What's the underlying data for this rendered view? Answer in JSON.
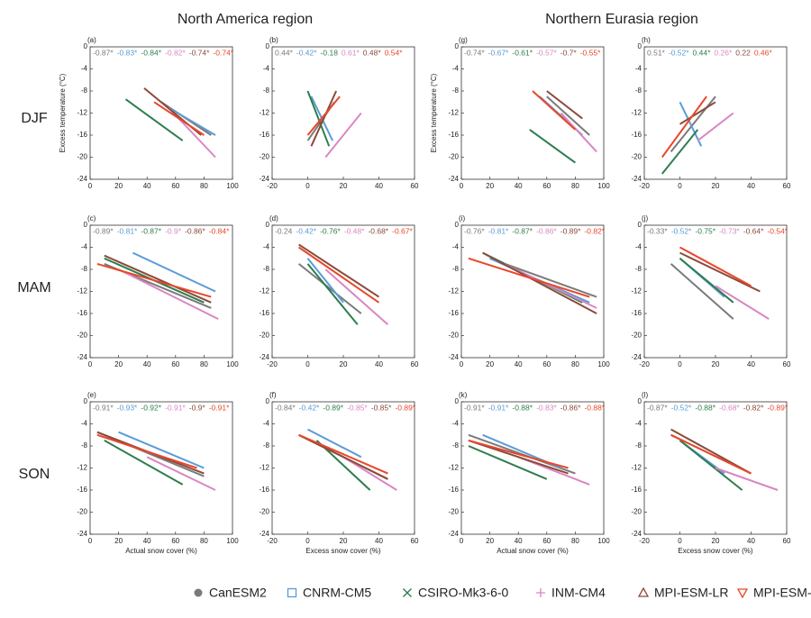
{
  "column_titles": [
    "North America region",
    "Northern Eurasia region"
  ],
  "row_labels": [
    "DJF",
    "MAM",
    "SON"
  ],
  "legend": [
    {
      "name": "CanESM2",
      "color": "#7a7a7a",
      "marker": "circle"
    },
    {
      "name": "CNRM-CM5",
      "color": "#5b9bd5",
      "marker": "square"
    },
    {
      "name": "CSIRO-Mk3-6-0",
      "color": "#2e7d4f",
      "marker": "cross"
    },
    {
      "name": "INM-CM4",
      "color": "#d987c2",
      "marker": "plus"
    },
    {
      "name": "MPI-ESM-LR",
      "color": "#8b4a3a",
      "marker": "triangle-up"
    },
    {
      "name": "MPI-ESM-MR",
      "color": "#e8472b",
      "marker": "triangle-down"
    }
  ],
  "chart_data": [
    {
      "type": "line",
      "panel": "(a)",
      "ylabel": "Excess temperature (°C)",
      "xlim": [
        0,
        100
      ],
      "xticks": [
        0,
        20,
        40,
        60,
        80,
        100
      ],
      "ylim": [
        -24,
        0
      ],
      "yticks": [
        0,
        -4,
        -8,
        -12,
        -16,
        -20,
        -24
      ],
      "series": [
        {
          "label": "-0.87*",
          "x": [
            50,
            85
          ],
          "values": [
            -10,
            -16
          ]
        },
        {
          "label": "-0.83*",
          "x": [
            55,
            88
          ],
          "values": [
            -11,
            -16
          ]
        },
        {
          "label": "-0.84*",
          "x": [
            25,
            65
          ],
          "values": [
            -9.5,
            -17
          ]
        },
        {
          "label": "-0.82*",
          "x": [
            55,
            88
          ],
          "values": [
            -11,
            -20
          ]
        },
        {
          "label": "-0.74*",
          "x": [
            38,
            78
          ],
          "values": [
            -7.5,
            -16
          ]
        },
        {
          "label": "-0.74*",
          "x": [
            45,
            80
          ],
          "values": [
            -10,
            -16
          ]
        }
      ]
    },
    {
      "type": "line",
      "panel": "(b)",
      "xlim": [
        -20,
        60
      ],
      "xticks": [
        -20,
        0,
        20,
        40,
        60
      ],
      "ylim": [
        -24,
        0
      ],
      "yticks": [
        0,
        -4,
        -8,
        -12,
        -16,
        -20,
        -24
      ],
      "series": [
        {
          "label": "0.44*",
          "x": [
            0,
            15
          ],
          "values": [
            -17,
            -10
          ]
        },
        {
          "label": "-0.42*",
          "x": [
            2,
            14
          ],
          "values": [
            -9,
            -17
          ]
        },
        {
          "label": "-0.18",
          "x": [
            0,
            12
          ],
          "values": [
            -8,
            -18
          ]
        },
        {
          "label": "0.61*",
          "x": [
            10,
            30
          ],
          "values": [
            -20,
            -12
          ]
        },
        {
          "label": "0.48*",
          "x": [
            2,
            16
          ],
          "values": [
            -18,
            -8
          ]
        },
        {
          "label": "0.54*",
          "x": [
            0,
            18
          ],
          "values": [
            -16,
            -9
          ]
        }
      ]
    },
    {
      "type": "line",
      "panel": "(g)",
      "ylabel": "Excess temperature (°C)",
      "xlim": [
        0,
        100
      ],
      "xticks": [
        0,
        20,
        40,
        60,
        80,
        100
      ],
      "ylim": [
        -24,
        0
      ],
      "yticks": [
        0,
        -4,
        -8,
        -12,
        -16,
        -20,
        -24
      ],
      "series": [
        {
          "label": "-0.74*",
          "x": [
            60,
            90
          ],
          "values": [
            -9,
            -16
          ]
        },
        {
          "label": "-0.67*",
          "x": [
            55,
            85
          ],
          "values": [
            -9,
            -16
          ]
        },
        {
          "label": "-0.61*",
          "x": [
            48,
            80
          ],
          "values": [
            -15,
            -21
          ]
        },
        {
          "label": "-0.57*",
          "x": [
            70,
            95
          ],
          "values": [
            -12,
            -19
          ]
        },
        {
          "label": "-0.7*",
          "x": [
            60,
            85
          ],
          "values": [
            -8,
            -13
          ]
        },
        {
          "label": "-0.55*",
          "x": [
            50,
            80
          ],
          "values": [
            -8,
            -15
          ]
        }
      ]
    },
    {
      "type": "line",
      "panel": "(h)",
      "xlim": [
        -20,
        60
      ],
      "xticks": [
        -20,
        0,
        20,
        40,
        60
      ],
      "ylim": [
        -24,
        0
      ],
      "yticks": [
        0,
        -4,
        -8,
        -12,
        -16,
        -20,
        -24
      ],
      "series": [
        {
          "label": "0.51*",
          "x": [
            -5,
            20
          ],
          "values": [
            -19,
            -9
          ]
        },
        {
          "label": "-0.52*",
          "x": [
            0,
            12
          ],
          "values": [
            -10,
            -18
          ]
        },
        {
          "label": "0.44*",
          "x": [
            -10,
            10
          ],
          "values": [
            -23,
            -15
          ]
        },
        {
          "label": "0.26*",
          "x": [
            10,
            30
          ],
          "values": [
            -17,
            -12
          ]
        },
        {
          "label": "0.22",
          "x": [
            0,
            20
          ],
          "values": [
            -14,
            -10
          ]
        },
        {
          "label": "0.46*",
          "x": [
            -10,
            15
          ],
          "values": [
            -20,
            -9
          ]
        }
      ]
    },
    {
      "type": "line",
      "panel": "(c)",
      "xlim": [
        0,
        100
      ],
      "xticks": [
        0,
        20,
        40,
        60,
        80,
        100
      ],
      "ylim": [
        -24,
        0
      ],
      "yticks": [
        0,
        -4,
        -8,
        -12,
        -16,
        -20,
        -24
      ],
      "series": [
        {
          "label": "-0.89*",
          "x": [
            10,
            85
          ],
          "values": [
            -7,
            -15
          ]
        },
        {
          "label": "-0.81*",
          "x": [
            30,
            88
          ],
          "values": [
            -5,
            -12
          ]
        },
        {
          "label": "-0.87*",
          "x": [
            10,
            80
          ],
          "values": [
            -6,
            -14
          ]
        },
        {
          "label": "-0.9*",
          "x": [
            20,
            90
          ],
          "values": [
            -8,
            -17
          ]
        },
        {
          "label": "-0.86*",
          "x": [
            10,
            85
          ],
          "values": [
            -5.5,
            -14
          ]
        },
        {
          "label": "-0.84*",
          "x": [
            5,
            85
          ],
          "values": [
            -7,
            -13
          ]
        }
      ]
    },
    {
      "type": "line",
      "panel": "(d)",
      "xlim": [
        -20,
        60
      ],
      "xticks": [
        -20,
        0,
        20,
        40,
        60
      ],
      "ylim": [
        -24,
        0
      ],
      "yticks": [
        0,
        -4,
        -8,
        -12,
        -16,
        -20,
        -24
      ],
      "series": [
        {
          "label": "-0.24",
          "x": [
            -5,
            30
          ],
          "values": [
            -7,
            -16
          ]
        },
        {
          "label": "-0.42*",
          "x": [
            0,
            20
          ],
          "values": [
            -6,
            -14
          ]
        },
        {
          "label": "-0.76*",
          "x": [
            0,
            28
          ],
          "values": [
            -7,
            -18
          ]
        },
        {
          "label": "-0.48*",
          "x": [
            10,
            45
          ],
          "values": [
            -8,
            -18
          ]
        },
        {
          "label": "-0.68*",
          "x": [
            -5,
            40
          ],
          "values": [
            -3.5,
            -13
          ]
        },
        {
          "label": "-0.67*",
          "x": [
            -5,
            40
          ],
          "values": [
            -4,
            -14
          ]
        }
      ]
    },
    {
      "type": "line",
      "panel": "(i)",
      "xlim": [
        0,
        100
      ],
      "xticks": [
        0,
        20,
        40,
        60,
        80,
        100
      ],
      "ylim": [
        -24,
        0
      ],
      "yticks": [
        0,
        -4,
        -8,
        -12,
        -16,
        -20,
        -24
      ],
      "series": [
        {
          "label": "-0.76*",
          "x": [
            20,
            95
          ],
          "values": [
            -6,
            -13
          ]
        },
        {
          "label": "-0.81*",
          "x": [
            20,
            90
          ],
          "values": [
            -6,
            -14
          ]
        },
        {
          "label": "-0.87*",
          "x": [
            15,
            85
          ],
          "values": [
            -5,
            -14
          ]
        },
        {
          "label": "-0.86*",
          "x": [
            30,
            95
          ],
          "values": [
            -7,
            -15
          ]
        },
        {
          "label": "-0.89*",
          "x": [
            15,
            95
          ],
          "values": [
            -5,
            -16
          ]
        },
        {
          "label": "-0.82*",
          "x": [
            5,
            90
          ],
          "values": [
            -6,
            -13
          ]
        }
      ]
    },
    {
      "type": "line",
      "panel": "(j)",
      "xlim": [
        -20,
        60
      ],
      "xticks": [
        -20,
        0,
        20,
        40,
        60
      ],
      "ylim": [
        -24,
        0
      ],
      "yticks": [
        0,
        -4,
        -8,
        -12,
        -16,
        -20,
        -24
      ],
      "series": [
        {
          "label": "-0.33*",
          "x": [
            -5,
            30
          ],
          "values": [
            -7,
            -17
          ]
        },
        {
          "label": "-0.52*",
          "x": [
            0,
            25
          ],
          "values": [
            -6,
            -13
          ]
        },
        {
          "label": "-0.75*",
          "x": [
            0,
            30
          ],
          "values": [
            -6,
            -14
          ]
        },
        {
          "label": "-0.73*",
          "x": [
            20,
            50
          ],
          "values": [
            -11,
            -17
          ]
        },
        {
          "label": "-0.64*",
          "x": [
            0,
            45
          ],
          "values": [
            -5,
            -12
          ]
        },
        {
          "label": "-0.54*",
          "x": [
            0,
            40
          ],
          "values": [
            -4,
            -11
          ]
        }
      ]
    },
    {
      "type": "line",
      "panel": "(e)",
      "xlabel": "Actual snow cover (%)",
      "xlim": [
        0,
        100
      ],
      "xticks": [
        0,
        20,
        40,
        60,
        80,
        100
      ],
      "ylim": [
        -24,
        0
      ],
      "yticks": [
        0,
        -4,
        -8,
        -12,
        -16,
        -20,
        -24
      ],
      "series": [
        {
          "label": "-0.91*",
          "x": [
            5,
            80
          ],
          "values": [
            -5.5,
            -13.5
          ]
        },
        {
          "label": "-0.93*",
          "x": [
            20,
            80
          ],
          "values": [
            -5.5,
            -12
          ]
        },
        {
          "label": "-0.92*",
          "x": [
            10,
            65
          ],
          "values": [
            -7,
            -15
          ]
        },
        {
          "label": "-0.91*",
          "x": [
            40,
            88
          ],
          "values": [
            -10,
            -16
          ]
        },
        {
          "label": "-0.9*",
          "x": [
            5,
            80
          ],
          "values": [
            -5.5,
            -13
          ]
        },
        {
          "label": "-0.91*",
          "x": [
            5,
            75
          ],
          "values": [
            -6,
            -12
          ]
        }
      ]
    },
    {
      "type": "line",
      "panel": "(f)",
      "xlabel": "Excess snow cover (%)",
      "xlim": [
        -20,
        60
      ],
      "xticks": [
        -20,
        0,
        20,
        40,
        60
      ],
      "ylim": [
        -24,
        0
      ],
      "yticks": [
        0,
        -4,
        -8,
        -12,
        -16,
        -20,
        -24
      ],
      "series": [
        {
          "label": "-0.84*",
          "x": [
            -5,
            45
          ],
          "values": [
            -6,
            -14
          ]
        },
        {
          "label": "-0.42*",
          "x": [
            0,
            30
          ],
          "values": [
            -5,
            -10
          ]
        },
        {
          "label": "-0.89*",
          "x": [
            5,
            35
          ],
          "values": [
            -7,
            -16
          ]
        },
        {
          "label": "-0.85*",
          "x": [
            20,
            50
          ],
          "values": [
            -10,
            -16
          ]
        },
        {
          "label": "-0.85*",
          "x": [
            -5,
            45
          ],
          "values": [
            -6,
            -14
          ]
        },
        {
          "label": "-0.89*",
          "x": [
            -5,
            45
          ],
          "values": [
            -6,
            -13
          ]
        }
      ]
    },
    {
      "type": "line",
      "panel": "(k)",
      "xlabel": "Actual snow cover (%)",
      "xlim": [
        0,
        100
      ],
      "xticks": [
        0,
        20,
        40,
        60,
        80,
        100
      ],
      "ylim": [
        -24,
        0
      ],
      "yticks": [
        0,
        -4,
        -8,
        -12,
        -16,
        -20,
        -24
      ],
      "series": [
        {
          "label": "-0.91*",
          "x": [
            5,
            80
          ],
          "values": [
            -6,
            -13
          ]
        },
        {
          "label": "-0.91*",
          "x": [
            15,
            70
          ],
          "values": [
            -6,
            -12
          ]
        },
        {
          "label": "-0.88*",
          "x": [
            5,
            60
          ],
          "values": [
            -8,
            -14
          ]
        },
        {
          "label": "-0.83*",
          "x": [
            40,
            90
          ],
          "values": [
            -10,
            -15
          ]
        },
        {
          "label": "-0.86*",
          "x": [
            5,
            75
          ],
          "values": [
            -7,
            -13
          ]
        },
        {
          "label": "-0.88*",
          "x": [
            5,
            75
          ],
          "values": [
            -7,
            -12
          ]
        }
      ]
    },
    {
      "type": "line",
      "panel": "(l)",
      "xlabel": "Excess snow cover (%)",
      "xlim": [
        -20,
        60
      ],
      "xticks": [
        -20,
        0,
        20,
        40,
        60
      ],
      "ylim": [
        -24,
        0
      ],
      "yticks": [
        0,
        -4,
        -8,
        -12,
        -16,
        -20,
        -24
      ],
      "series": [
        {
          "label": "-0.87*",
          "x": [
            -5,
            40
          ],
          "values": [
            -6,
            -13
          ]
        },
        {
          "label": "-0.52*",
          "x": [
            0,
            25
          ],
          "values": [
            -7,
            -13
          ]
        },
        {
          "label": "-0.88*",
          "x": [
            0,
            35
          ],
          "values": [
            -7,
            -16
          ]
        },
        {
          "label": "-0.68*",
          "x": [
            20,
            55
          ],
          "values": [
            -12,
            -16
          ]
        },
        {
          "label": "-0.82*",
          "x": [
            -5,
            40
          ],
          "values": [
            -5,
            -13
          ]
        },
        {
          "label": "-0.89*",
          "x": [
            -5,
            40
          ],
          "values": [
            -6,
            -13
          ]
        }
      ]
    }
  ]
}
